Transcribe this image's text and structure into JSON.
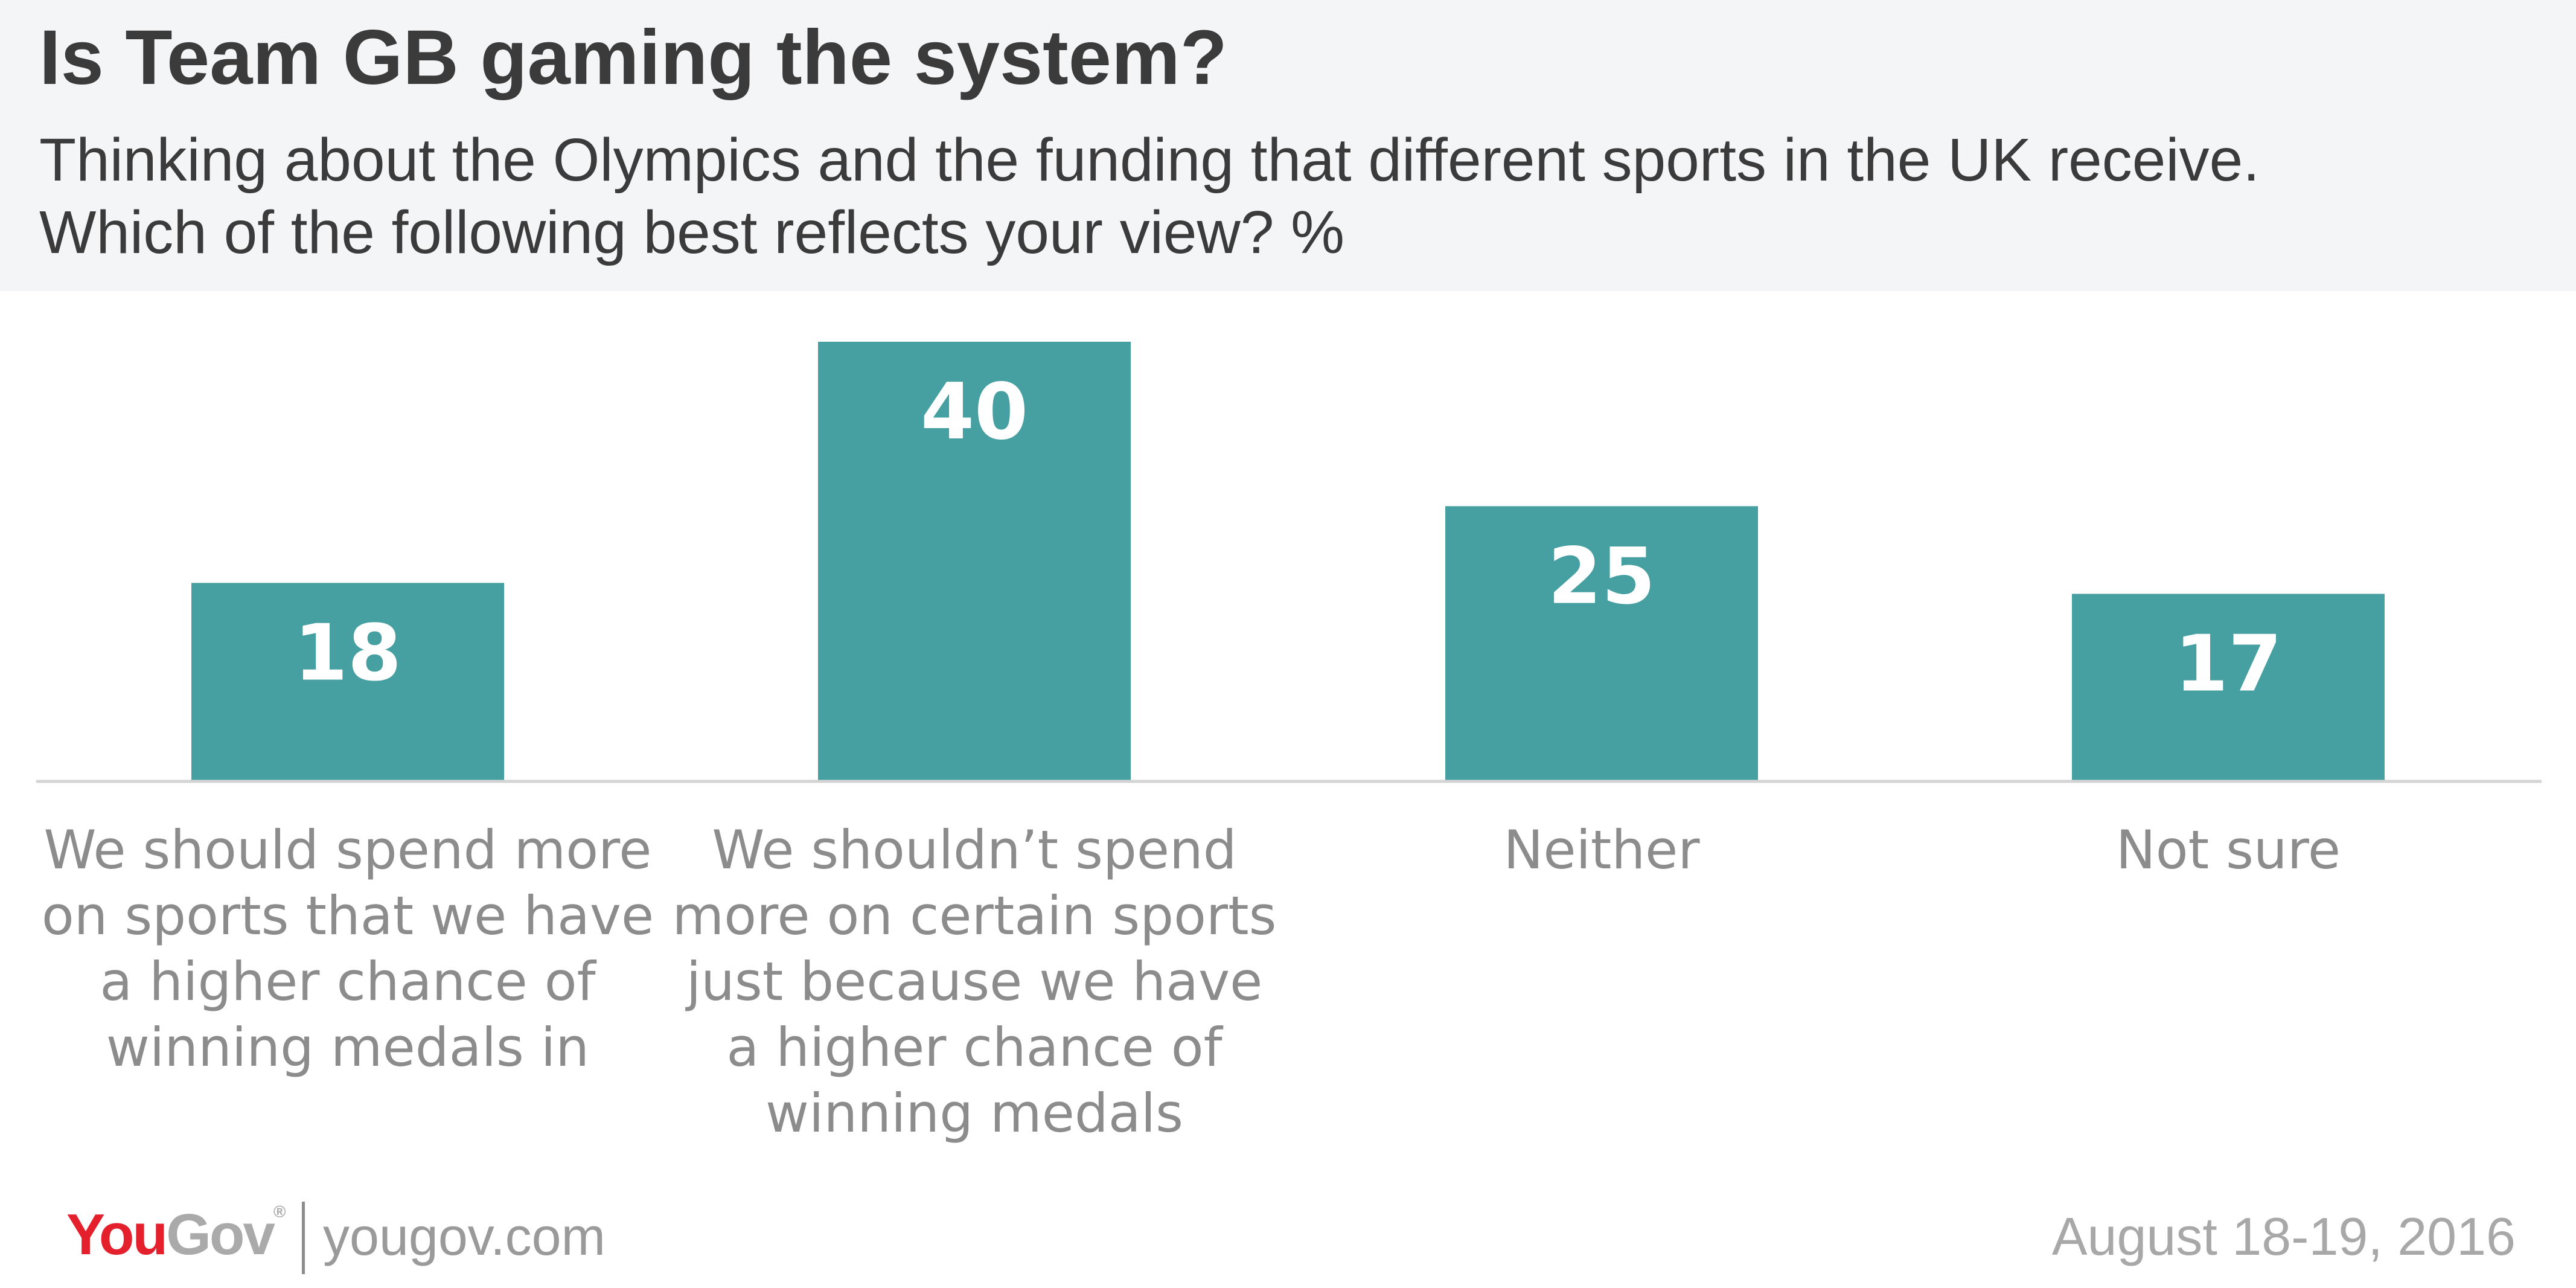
{
  "header": {
    "title": "Is Team GB gaming the system?",
    "subtitle_line1": "Thinking about the Olympics and the funding that different sports in the UK receive.",
    "subtitle_line2": "Which of the following best reflects your view? %"
  },
  "chart_data": {
    "type": "bar",
    "title": "Is Team GB gaming the system?",
    "subtitle": "Thinking about the Olympics and the funding that different sports in the UK receive. Which of the following best reflects your view? %",
    "categories": [
      "We should spend more on sports that we have a higher chance of winning medals in",
      "We shouldn’t spend more on certain sports just because we have a higher chance of winning medals",
      "Neither",
      "Not sure"
    ],
    "category_lines": [
      [
        "We should spend more",
        "on sports that we have",
        "a higher chance of",
        "winning medals in"
      ],
      [
        "We shouldn’t spend",
        "more on certain sports",
        "just because we have",
        "a higher chance of",
        "winning medals"
      ],
      [
        "Neither"
      ],
      [
        "Not sure"
      ]
    ],
    "values": [
      18,
      40,
      25,
      17
    ],
    "value_labels": [
      "18",
      "40",
      "25",
      "17"
    ],
    "xlabel": "",
    "ylabel": "",
    "ylim": [
      0,
      40
    ],
    "grid": false,
    "legend": "none",
    "bar_color": "#46a0a1"
  },
  "footer": {
    "brand_you": "You",
    "brand_gov": "Gov",
    "url": "yougov.com",
    "date": "August 18-19, 2016"
  },
  "colors": {
    "header_bg": "#f4f5f7",
    "bar": "#46a0a1",
    "title": "#3b3b3b",
    "category_text": "#8c8c8c",
    "brand_red": "#e4202d"
  }
}
